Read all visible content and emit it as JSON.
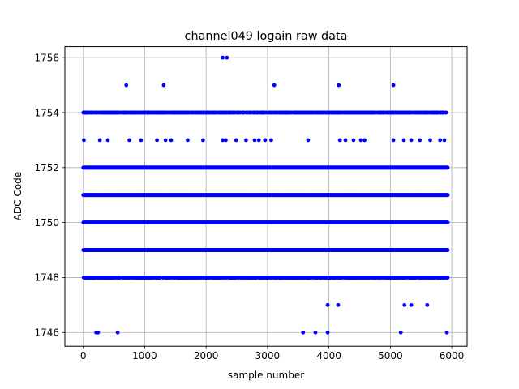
{
  "chart_data": {
    "type": "scatter",
    "title": "channel049 logain raw data",
    "xlabel": "sample number",
    "ylabel": "ADC Code",
    "xlim": [
      -300,
      6250
    ],
    "ylim": [
      1745.5,
      1756.4
    ],
    "x_ticks": [
      0,
      1000,
      2000,
      3000,
      4000,
      5000,
      6000
    ],
    "x_tick_labels": [
      "0",
      "1000",
      "2000",
      "3000",
      "4000",
      "5000",
      "6000"
    ],
    "y_ticks": [
      1746,
      1748,
      1750,
      1752,
      1754,
      1756
    ],
    "y_tick_labels": [
      "1746",
      "1748",
      "1750",
      "1752",
      "1754",
      "1756"
    ],
    "grid": true,
    "marker_color": "#0000ff",
    "n_samples": 5940,
    "dense_levels": [
      1748,
      1749,
      1750,
      1751,
      1752,
      1754
    ],
    "sparse_points": [
      {
        "y": 1756,
        "x": [
          2270,
          2340
        ]
      },
      {
        "y": 1755,
        "x": [
          700,
          1310,
          3110,
          4160,
          5050
        ]
      },
      {
        "y": 1753,
        "x": [
          10,
          270,
          400,
          750,
          940,
          1200,
          1340,
          1430,
          1700,
          1950,
          2270,
          2320,
          2490,
          2650,
          2790,
          2860,
          2960,
          3060,
          3660,
          4180,
          4270,
          4400,
          4520,
          4580,
          5050,
          5220,
          5340,
          5480,
          5650,
          5810,
          5880
        ]
      },
      {
        "y": 1747,
        "x": [
          3980,
          4150,
          5230,
          5340,
          5600
        ]
      },
      {
        "y": 1746,
        "x": [
          210,
          240,
          560,
          3580,
          3780,
          3980,
          5170,
          5920
        ]
      }
    ]
  }
}
